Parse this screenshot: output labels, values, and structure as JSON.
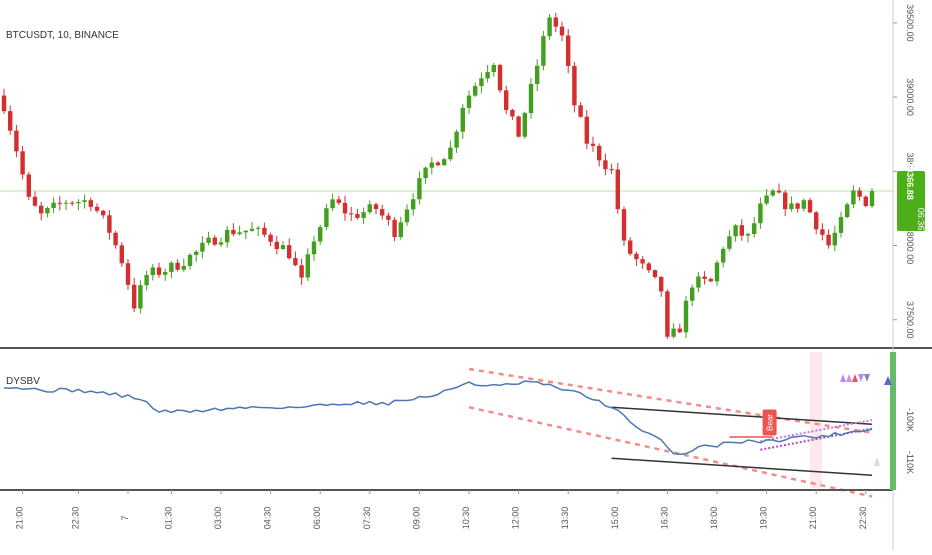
{
  "header": {
    "symbol_label": "BTCUSDT, 10, BINANCE"
  },
  "price_axis": {
    "ticks": [
      {
        "value": 39500,
        "label": "39500.00"
      },
      {
        "value": 39000,
        "label": "39000.00"
      },
      {
        "value": 38500,
        "label": "38500.00"
      },
      {
        "value": 38000,
        "label": "38000.00"
      },
      {
        "value": 37500,
        "label": "37500.00"
      }
    ],
    "last_price": {
      "value": 38366.88,
      "label": "38366.88",
      "countdown": "06:36",
      "color": "#4caf1a"
    },
    "reference_line": {
      "value": 38366.88,
      "color": "#b5e3a0"
    }
  },
  "indicator": {
    "label": "DYSBV",
    "y_ticks": [
      {
        "value": -100,
        "label": "-100K"
      },
      {
        "value": -110,
        "label": "-110K"
      }
    ],
    "signal_box": {
      "label": "Bear",
      "color": "#ef5350"
    },
    "triangle_colors": [
      "#b388ff",
      "#ce93d8",
      "#ef5350",
      "#b388ff",
      "#7986cb"
    ],
    "right_arrow_color": "#5c6bc0"
  },
  "time_axis": {
    "labels": [
      {
        "index": 3,
        "label": "21:00"
      },
      {
        "index": 12,
        "label": "22:30"
      },
      {
        "index": 20,
        "label": "7"
      },
      {
        "index": 27,
        "label": "01:30"
      },
      {
        "index": 35,
        "label": "03:00"
      },
      {
        "index": 43,
        "label": "04:30"
      },
      {
        "index": 51,
        "label": "06:00"
      },
      {
        "index": 59,
        "label": "07:30"
      },
      {
        "index": 67,
        "label": "09:00"
      },
      {
        "index": 75,
        "label": "10:30"
      },
      {
        "index": 83,
        "label": "12:00"
      },
      {
        "index": 91,
        "label": "13:30"
      },
      {
        "index": 99,
        "label": "15:00"
      },
      {
        "index": 107,
        "label": "16:30"
      },
      {
        "index": 115,
        "label": "18:00"
      },
      {
        "index": 123,
        "label": "19:30"
      },
      {
        "index": 131,
        "label": "21:00"
      },
      {
        "index": 139,
        "label": "22:30"
      }
    ]
  },
  "colors": {
    "up": "#43a01f",
    "down": "#d32f2f",
    "ind_line": "#4a78b0"
  },
  "chart_data": [
    {
      "type": "candlestick",
      "title": "BTCUSDT, 10, BINANCE",
      "ylim": [
        37350,
        39600
      ],
      "close_path": [
        [
          0,
          38950
        ],
        [
          2,
          38650
        ],
        [
          4,
          38300
        ],
        [
          6,
          38200
        ],
        [
          10,
          38300
        ],
        [
          14,
          38300
        ],
        [
          17,
          38100
        ],
        [
          19,
          37900
        ],
        [
          21,
          37600
        ],
        [
          23,
          37800
        ],
        [
          27,
          37850
        ],
        [
          31,
          37950
        ],
        [
          34,
          38050
        ],
        [
          37,
          38100
        ],
        [
          40,
          38100
        ],
        [
          43,
          38050
        ],
        [
          46,
          37950
        ],
        [
          48,
          37750
        ],
        [
          50,
          38050
        ],
        [
          53,
          38300
        ],
        [
          56,
          38200
        ],
        [
          60,
          38250
        ],
        [
          63,
          38100
        ],
        [
          66,
          38350
        ],
        [
          69,
          38550
        ],
        [
          72,
          38650
        ],
        [
          74,
          38950
        ],
        [
          77,
          39150
        ],
        [
          79,
          39250
        ],
        [
          81,
          38900
        ],
        [
          83,
          38750
        ],
        [
          85,
          39050
        ],
        [
          88,
          39550
        ],
        [
          90,
          39400
        ],
        [
          92,
          38950
        ],
        [
          94,
          38700
        ],
        [
          96,
          38600
        ],
        [
          98,
          38500
        ],
        [
          100,
          38000
        ],
        [
          102,
          37900
        ],
        [
          104,
          37800
        ],
        [
          106,
          37700
        ],
        [
          107,
          37350
        ],
        [
          109,
          37450
        ],
        [
          111,
          37750
        ],
        [
          114,
          37750
        ],
        [
          116,
          38000
        ],
        [
          118,
          38100
        ],
        [
          120,
          38050
        ],
        [
          122,
          38250
        ],
        [
          124,
          38350
        ],
        [
          127,
          38250
        ],
        [
          129,
          38300
        ],
        [
          131,
          38150
        ],
        [
          133,
          38000
        ],
        [
          135,
          38150
        ],
        [
          137,
          38350
        ],
        [
          139,
          38300
        ],
        [
          140,
          38366.88
        ]
      ]
    },
    {
      "type": "line",
      "name": "DYSBV",
      "ylim": [
        -116,
        -84
      ],
      "path": [
        [
          0,
          -92
        ],
        [
          6,
          -93
        ],
        [
          12,
          -93
        ],
        [
          18,
          -94
        ],
        [
          22,
          -95
        ],
        [
          25,
          -98
        ],
        [
          29,
          -98
        ],
        [
          40,
          -97
        ],
        [
          48,
          -97
        ],
        [
          55,
          -96
        ],
        [
          62,
          -96
        ],
        [
          66,
          -95
        ],
        [
          70,
          -94
        ],
        [
          75,
          -91
        ],
        [
          77,
          -92
        ],
        [
          80,
          -92
        ],
        [
          85,
          -91
        ],
        [
          88,
          -92
        ],
        [
          91,
          -93
        ],
        [
          95,
          -95
        ],
        [
          98,
          -97
        ],
        [
          100,
          -99
        ],
        [
          102,
          -102
        ],
        [
          105,
          -104
        ],
        [
          107,
          -106
        ],
        [
          108,
          -108
        ],
        [
          110,
          -108
        ],
        [
          112,
          -106
        ],
        [
          115,
          -106
        ],
        [
          118,
          -105
        ],
        [
          121,
          -105
        ],
        [
          124,
          -105
        ],
        [
          127,
          -104
        ],
        [
          131,
          -104
        ],
        [
          136,
          -103
        ],
        [
          140,
          -102
        ]
      ],
      "channel_black": [
        {
          "x1": 98,
          "y1": -97,
          "x2": 140,
          "y2": -101
        },
        {
          "x1": 98,
          "y1": -109,
          "x2": 140,
          "y2": -113
        }
      ],
      "channel_dashed": [
        {
          "x1": 75,
          "y1": -88,
          "x2": 140,
          "y2": -103
        },
        {
          "x1": 75,
          "y1": -97,
          "x2": 140,
          "y2": -118
        }
      ]
    }
  ]
}
